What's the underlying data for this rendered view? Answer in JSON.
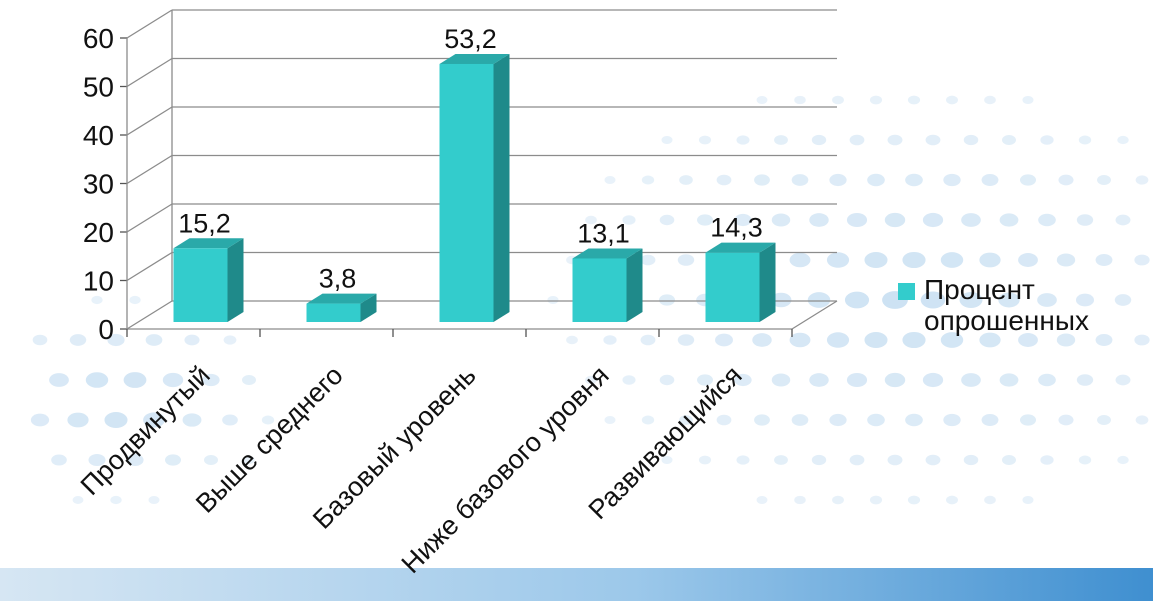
{
  "chart_data": {
    "type": "bar",
    "categories": [
      "Продвинутый",
      "Выше среднего",
      "Базовый уровень",
      "Ниже базового уровня",
      "Развивающийся"
    ],
    "series": [
      {
        "name": "Процент опрошенных",
        "values": [
          15.2,
          3.8,
          53.2,
          13.1,
          14.3
        ]
      }
    ],
    "data_labels": [
      "15,2",
      "3,8",
      "53,2",
      "13,1",
      "14,3"
    ],
    "yticks": [
      0,
      10,
      20,
      30,
      40,
      50,
      60
    ],
    "ylim": [
      0,
      60
    ],
    "grid": true,
    "legend_position": "right",
    "style": "3d-column"
  },
  "colors": {
    "bar_front": "#33cccc",
    "bar_side": "#1f8a8a",
    "bar_top": "#2aa9a9",
    "gridline": "#8c8c8c"
  }
}
